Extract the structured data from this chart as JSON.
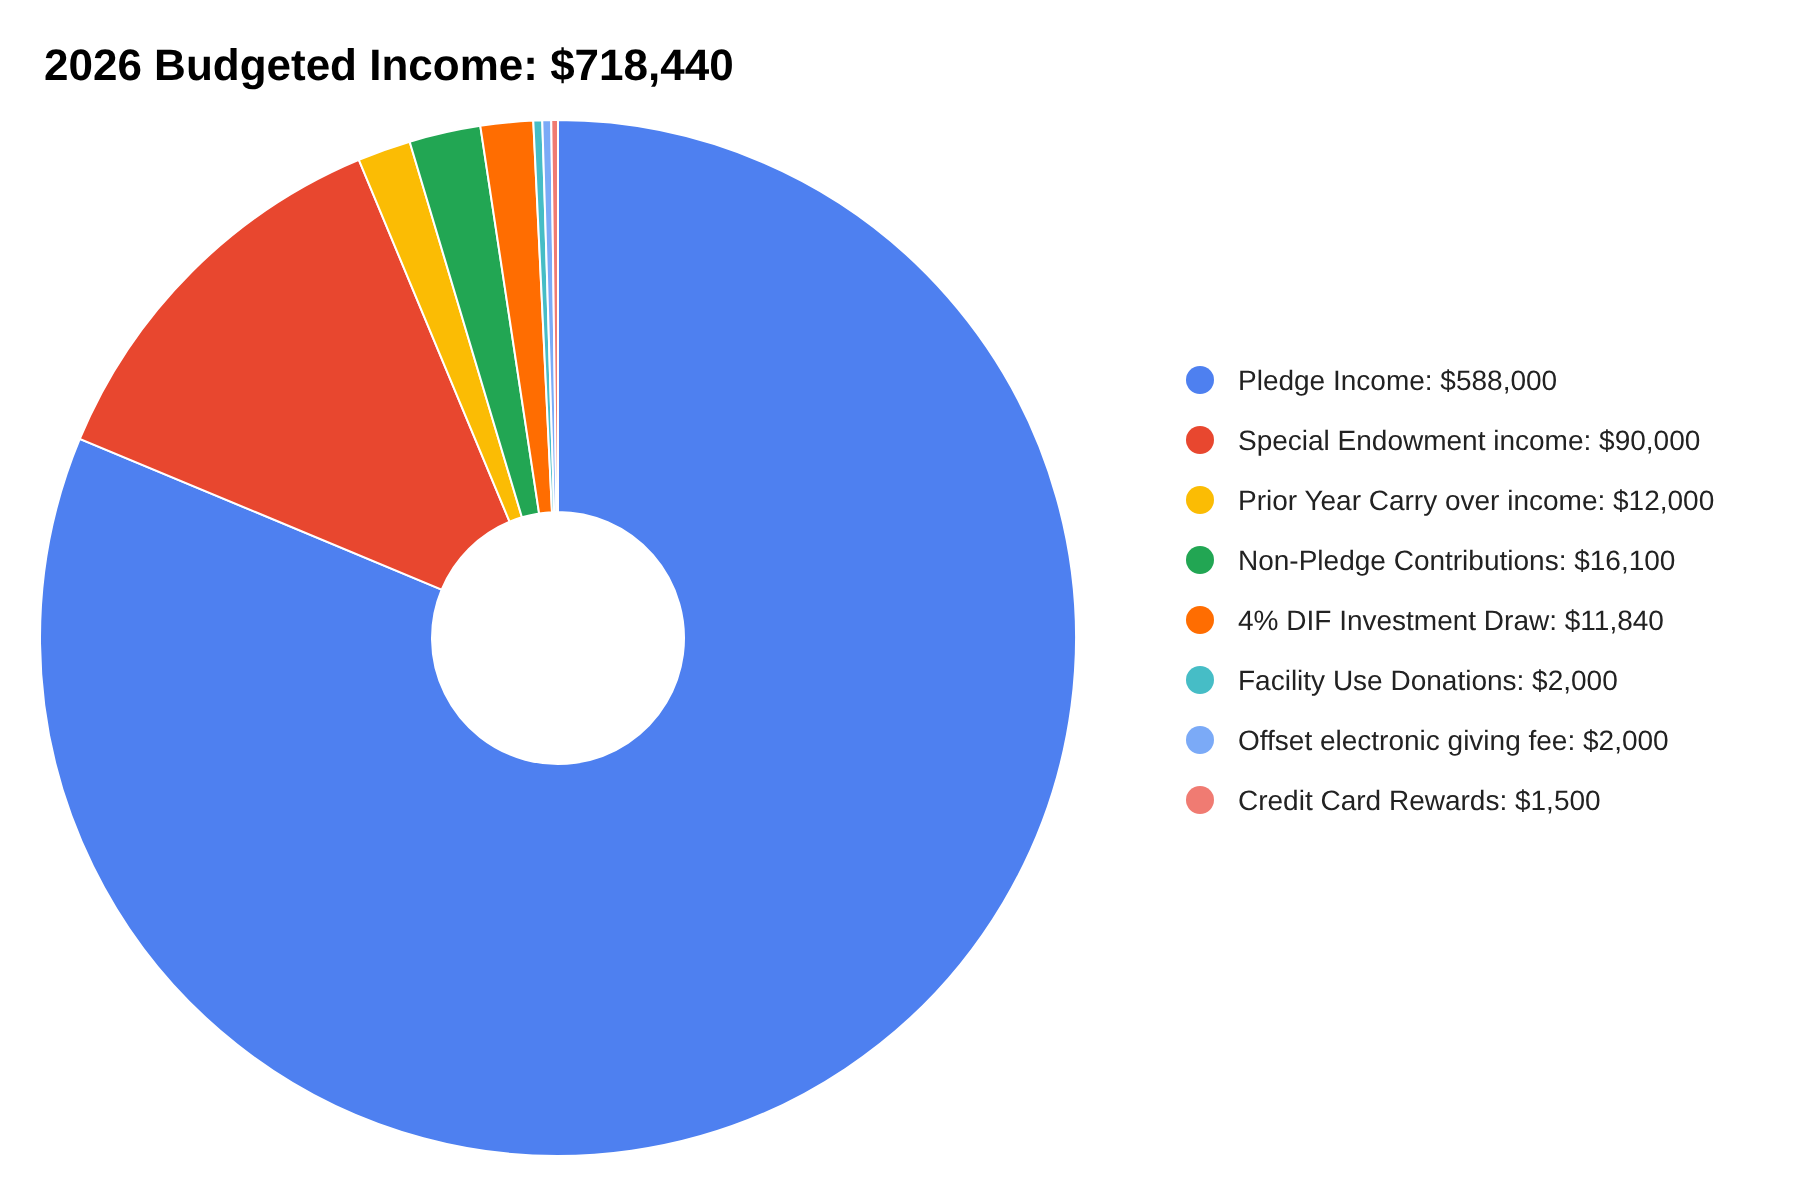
{
  "chart_data": {
    "type": "donut",
    "title": "2026 Budgeted Income: $718,440",
    "categories": [
      "Pledge Income: $588,000",
      "Special Endowment income: $90,000",
      "Prior Year Carry over income: $12,000",
      "Non-Pledge Contributions: $16,100",
      "4% DIF Investment Draw: $11,840",
      "Facility Use Donations: $2,000",
      "Offset electronic giving fee: $2,000",
      "Credit Card Rewards: $1,500"
    ],
    "values": [
      588000,
      90000,
      12000,
      16100,
      11840,
      2000,
      2000,
      1500
    ],
    "colors": [
      "#4e80f0",
      "#e8472f",
      "#fbbc04",
      "#22a653",
      "#ff6d01",
      "#46bdc6",
      "#7baaf7",
      "#f07b72"
    ],
    "legend": "right"
  }
}
